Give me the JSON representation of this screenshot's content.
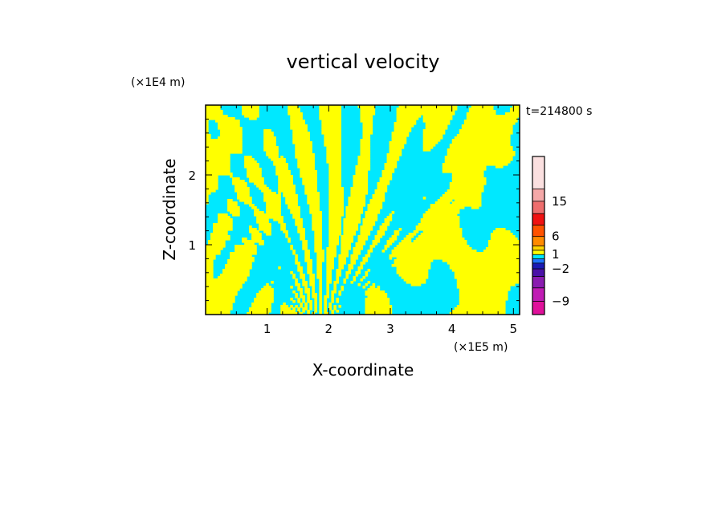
{
  "chart_data": {
    "type": "heatmap",
    "title": "vertical velocity",
    "xlabel": "X-coordinate",
    "ylabel": "Z-coordinate",
    "x_unit": "(×1E5 m)",
    "y_unit": "(×1E4 m)",
    "time_label": "t=214800 s",
    "x_range": [
      0,
      5.1
    ],
    "y_range": [
      0,
      3.0
    ],
    "x_ticks": [
      1,
      2,
      3,
      4,
      5
    ],
    "x_tick_labels": [
      "1",
      "2",
      "3",
      "4",
      "5"
    ],
    "y_ticks": [
      1,
      2
    ],
    "y_tick_labels": [
      "1",
      "2"
    ],
    "field_colors": {
      "positive": "#ffff00",
      "negative": "#00e8ff"
    },
    "colorbar": {
      "levels": [
        -12,
        -9,
        -6,
        -4,
        -2,
        -1,
        0,
        1,
        2,
        4,
        6,
        9,
        12,
        15,
        18,
        21
      ],
      "colors": [
        "#e0119b",
        "#c01cb4",
        "#8a1cb0",
        "#4a12a8",
        "#1a1ab4",
        "#1f73ff",
        "#00e8ff",
        "#ffff00",
        "#ffd400",
        "#ff8a00",
        "#ff5200",
        "#f01212",
        "#ee6e6e",
        "#f4a8a8",
        "#fbe0e0",
        "#fbe0e0"
      ],
      "tick_values": [
        15,
        6,
        1,
        -2,
        -9
      ],
      "tick_labels": [
        "15",
        "6",
        "1",
        "−2",
        "−9"
      ]
    }
  }
}
